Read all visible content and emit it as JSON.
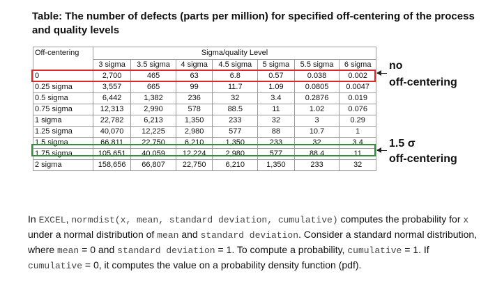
{
  "title": "Table: The number of defects (parts per million) for specified off-centering of the process and quality levels",
  "table": {
    "row_header": "Off-centering",
    "group_header": "Sigma/quality Level",
    "columns": [
      "3 sigma",
      "3.5 sigma",
      "4 sigma",
      "4.5 sigma",
      "5 sigma",
      "5.5 sigma",
      "6 sigma"
    ],
    "rows": [
      {
        "label": "0",
        "values": [
          "2,700",
          "465",
          "63",
          "6.8",
          "0.57",
          "0.038",
          "0.002"
        ]
      },
      {
        "label": "0.25 sigma",
        "values": [
          "3,557",
          "665",
          "99",
          "11.7",
          "1.09",
          "0.0805",
          "0.0047"
        ]
      },
      {
        "label": "0.5 sigma",
        "values": [
          "6,442",
          "1,382",
          "236",
          "32",
          "3.4",
          "0.2876",
          "0.019"
        ]
      },
      {
        "label": "0.75 sigma",
        "values": [
          "12,313",
          "2,990",
          "578",
          "88.5",
          "11",
          "1.02",
          "0.076"
        ]
      },
      {
        "label": "1 sigma",
        "values": [
          "22,782",
          "6,213",
          "1,350",
          "233",
          "32",
          "3",
          "0.29"
        ]
      },
      {
        "label": "1.25 sigma",
        "values": [
          "40,070",
          "12,225",
          "2,980",
          "577",
          "88",
          "10.7",
          "1"
        ]
      },
      {
        "label": "1.5 sigma",
        "values": [
          "66,811",
          "22,750",
          "6,210",
          "1,350",
          "233",
          "32",
          "3.4"
        ]
      },
      {
        "label": "1.75 sigma",
        "values": [
          "105,651",
          "40,059",
          "12,224",
          "2,980",
          "577",
          "88.4",
          "11"
        ]
      },
      {
        "label": "2 sigma",
        "values": [
          "158,656",
          "66,807",
          "22,750",
          "6,210",
          "1,350",
          "233",
          "32"
        ]
      }
    ]
  },
  "annotations": {
    "no_off_1": "no",
    "no_off_2": "off-centering",
    "sigma_1": "1.5 σ",
    "sigma_2": "off-centering"
  },
  "paragraph": {
    "p1": "In ",
    "excel": "EXCEL",
    "p2": ", ",
    "func": "normdist(x, mean, standard deviation, cumulative)",
    "p3": " computes the probability for ",
    "x": "x",
    "p4": " under a normal distribution of ",
    "mean": "mean",
    "p5": " and ",
    "sd": "standard deviation",
    "p6": ". Consider a standard normal distribution, where ",
    "mean_eq": "mean",
    "p7": " = 0 and ",
    "sd_eq": "standard deviation",
    "p8": " = 1. To compute a probability, ",
    "cum1": "cumulative",
    "p9": " = 1. If ",
    "cum0": "cumulative",
    "p10": " = 0, it computes the value on a probability density function (pdf)."
  },
  "colors": {
    "no_offcentering_box": "#d92b2b",
    "offcentering_box": "#2f8f3a"
  }
}
